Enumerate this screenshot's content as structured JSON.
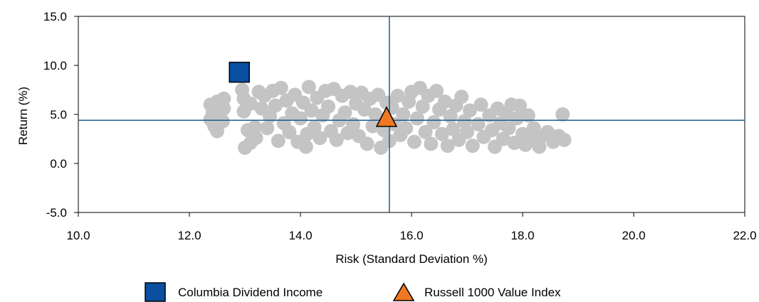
{
  "chart_data": {
    "type": "scatter",
    "title": "",
    "xlabel": "Risk (Standard Deviation %)",
    "ylabel": "Return (%)",
    "xlim": [
      10.0,
      22.0
    ],
    "ylim": [
      -5.0,
      15.0
    ],
    "x_ticks": [
      "10.0",
      "12.0",
      "14.0",
      "16.0",
      "18.0",
      "20.0",
      "22.0"
    ],
    "y_ticks": [
      "-5.0",
      "0.0",
      "5.0",
      "10.0",
      "15.0"
    ],
    "grid": false,
    "reference_lines": {
      "x": 15.6,
      "y": 4.4,
      "color": "#1f5d8c"
    },
    "colors": {
      "universe": "#c4c4c4",
      "fund": "#0a4fa0",
      "benchmark": "#f07820"
    },
    "legend_position": "bottom",
    "series": [
      {
        "name": "Columbia Dividend Income",
        "marker": "square",
        "points": [
          {
            "x": 12.9,
            "y": 9.3
          }
        ]
      },
      {
        "name": "Russell 1000 Value Index",
        "marker": "triangle",
        "points": [
          {
            "x": 15.55,
            "y": 4.5
          }
        ]
      },
      {
        "marker": "circle",
        "points": [
          {
            "x": 12.38,
            "y": 6.0
          },
          {
            "x": 12.38,
            "y": 4.5
          },
          {
            "x": 12.42,
            "y": 5.2
          },
          {
            "x": 12.45,
            "y": 3.8
          },
          {
            "x": 12.5,
            "y": 6.3
          },
          {
            "x": 12.5,
            "y": 3.3
          },
          {
            "x": 12.55,
            "y": 5.0
          },
          {
            "x": 12.6,
            "y": 4.3
          },
          {
            "x": 12.62,
            "y": 6.6
          },
          {
            "x": 12.62,
            "y": 5.6
          },
          {
            "x": 12.95,
            "y": 7.5
          },
          {
            "x": 12.98,
            "y": 6.6
          },
          {
            "x": 12.98,
            "y": 5.3
          },
          {
            "x": 13.0,
            "y": 1.6
          },
          {
            "x": 13.05,
            "y": 3.4
          },
          {
            "x": 13.1,
            "y": 2.1
          },
          {
            "x": 13.1,
            "y": 6.1
          },
          {
            "x": 13.18,
            "y": 3.7
          },
          {
            "x": 13.2,
            "y": 2.6
          },
          {
            "x": 13.25,
            "y": 7.3
          },
          {
            "x": 13.3,
            "y": 5.6
          },
          {
            "x": 13.35,
            "y": 6.9
          },
          {
            "x": 13.4,
            "y": 3.6
          },
          {
            "x": 13.45,
            "y": 4.8
          },
          {
            "x": 13.5,
            "y": 7.4
          },
          {
            "x": 13.55,
            "y": 5.9
          },
          {
            "x": 13.6,
            "y": 2.3
          },
          {
            "x": 13.65,
            "y": 7.7
          },
          {
            "x": 13.7,
            "y": 4.1
          },
          {
            "x": 13.75,
            "y": 6.4
          },
          {
            "x": 13.8,
            "y": 3.2
          },
          {
            "x": 13.85,
            "y": 5.1
          },
          {
            "x": 13.9,
            "y": 7.0
          },
          {
            "x": 13.95,
            "y": 2.2
          },
          {
            "x": 14.0,
            "y": 4.6
          },
          {
            "x": 14.05,
            "y": 6.2
          },
          {
            "x": 14.1,
            "y": 1.7
          },
          {
            "x": 14.12,
            "y": 3.0
          },
          {
            "x": 14.15,
            "y": 7.8
          },
          {
            "x": 14.2,
            "y": 5.4
          },
          {
            "x": 14.25,
            "y": 3.7
          },
          {
            "x": 14.3,
            "y": 6.7
          },
          {
            "x": 14.35,
            "y": 2.6
          },
          {
            "x": 14.4,
            "y": 4.9
          },
          {
            "x": 14.45,
            "y": 7.4
          },
          {
            "x": 14.5,
            "y": 5.8
          },
          {
            "x": 14.55,
            "y": 3.3
          },
          {
            "x": 14.6,
            "y": 7.6
          },
          {
            "x": 14.65,
            "y": 2.4
          },
          {
            "x": 14.7,
            "y": 4.4
          },
          {
            "x": 14.75,
            "y": 6.9
          },
          {
            "x": 14.8,
            "y": 5.2
          },
          {
            "x": 14.85,
            "y": 3.1
          },
          {
            "x": 14.9,
            "y": 7.3
          },
          {
            "x": 14.95,
            "y": 4.0
          },
          {
            "x": 15.0,
            "y": 6.1
          },
          {
            "x": 15.05,
            "y": 2.8
          },
          {
            "x": 15.1,
            "y": 7.2
          },
          {
            "x": 15.15,
            "y": 5.5
          },
          {
            "x": 15.2,
            "y": 2.0
          },
          {
            "x": 15.25,
            "y": 6.6
          },
          {
            "x": 15.3,
            "y": 3.8
          },
          {
            "x": 15.35,
            "y": 5.0
          },
          {
            "x": 15.4,
            "y": 7.0
          },
          {
            "x": 15.45,
            "y": 1.6
          },
          {
            "x": 15.5,
            "y": 3.4
          },
          {
            "x": 15.55,
            "y": 6.2
          },
          {
            "x": 15.6,
            "y": 2.3
          },
          {
            "x": 15.65,
            "y": 5.7
          },
          {
            "x": 15.7,
            "y": 4.0
          },
          {
            "x": 15.75,
            "y": 6.9
          },
          {
            "x": 15.8,
            "y": 2.9
          },
          {
            "x": 15.85,
            "y": 5.0
          },
          {
            "x": 15.9,
            "y": 3.6
          },
          {
            "x": 15.95,
            "y": 6.3
          },
          {
            "x": 16.0,
            "y": 7.3
          },
          {
            "x": 16.05,
            "y": 2.2
          },
          {
            "x": 16.1,
            "y": 4.6
          },
          {
            "x": 16.15,
            "y": 7.7
          },
          {
            "x": 16.2,
            "y": 5.8
          },
          {
            "x": 16.25,
            "y": 3.2
          },
          {
            "x": 16.3,
            "y": 6.9
          },
          {
            "x": 16.35,
            "y": 2.0
          },
          {
            "x": 16.4,
            "y": 4.2
          },
          {
            "x": 16.45,
            "y": 7.4
          },
          {
            "x": 16.5,
            "y": 5.5
          },
          {
            "x": 16.55,
            "y": 3.0
          },
          {
            "x": 16.6,
            "y": 6.3
          },
          {
            "x": 16.65,
            "y": 1.8
          },
          {
            "x": 16.7,
            "y": 4.8
          },
          {
            "x": 16.75,
            "y": 3.5
          },
          {
            "x": 16.8,
            "y": 5.9
          },
          {
            "x": 16.85,
            "y": 2.4
          },
          {
            "x": 16.9,
            "y": 6.8
          },
          {
            "x": 16.95,
            "y": 4.3
          },
          {
            "x": 17.0,
            "y": 3.2
          },
          {
            "x": 17.05,
            "y": 5.4
          },
          {
            "x": 17.1,
            "y": 1.8
          },
          {
            "x": 17.2,
            "y": 4.0
          },
          {
            "x": 17.25,
            "y": 6.0
          },
          {
            "x": 17.3,
            "y": 2.7
          },
          {
            "x": 17.4,
            "y": 4.9
          },
          {
            "x": 17.45,
            "y": 3.4
          },
          {
            "x": 17.5,
            "y": 1.7
          },
          {
            "x": 17.55,
            "y": 5.6
          },
          {
            "x": 17.6,
            "y": 4.1
          },
          {
            "x": 17.65,
            "y": 2.5
          },
          {
            "x": 17.7,
            "y": 5.1
          },
          {
            "x": 17.75,
            "y": 3.6
          },
          {
            "x": 17.8,
            "y": 6.0
          },
          {
            "x": 17.85,
            "y": 2.1
          },
          {
            "x": 17.9,
            "y": 4.6
          },
          {
            "x": 17.95,
            "y": 5.9
          },
          {
            "x": 18.0,
            "y": 3.0
          },
          {
            "x": 18.05,
            "y": 1.9
          },
          {
            "x": 18.1,
            "y": 4.9
          },
          {
            "x": 18.15,
            "y": 2.6
          },
          {
            "x": 18.2,
            "y": 3.6
          },
          {
            "x": 18.3,
            "y": 1.7
          },
          {
            "x": 18.35,
            "y": 2.8
          },
          {
            "x": 18.45,
            "y": 3.2
          },
          {
            "x": 18.55,
            "y": 2.2
          },
          {
            "x": 18.65,
            "y": 2.8
          },
          {
            "x": 18.72,
            "y": 5.0
          },
          {
            "x": 18.75,
            "y": 2.4
          }
        ]
      }
    ]
  }
}
